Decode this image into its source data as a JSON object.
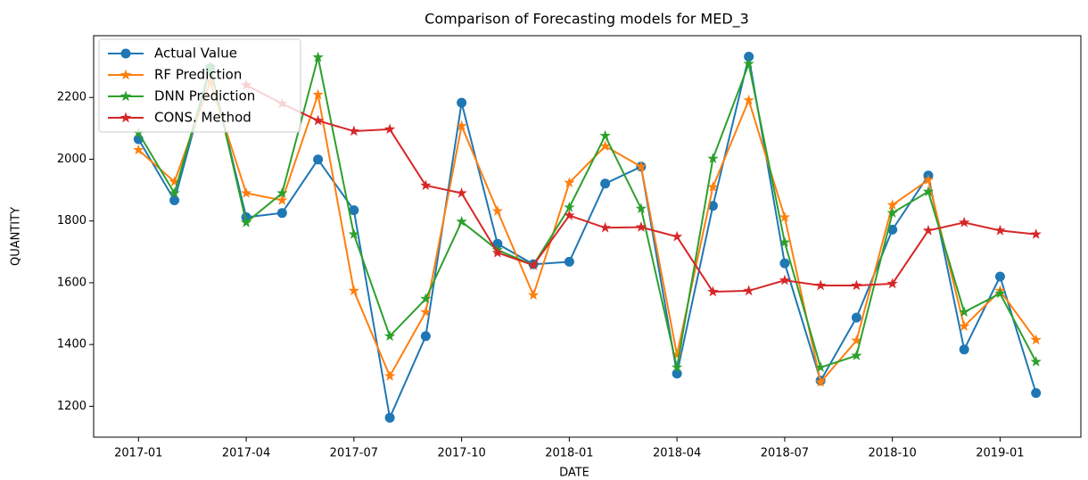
{
  "chart_data": {
    "type": "line",
    "title": "Comparison of Forecasting models for MED_3",
    "xlabel": "DATE",
    "ylabel": "QUANTITY",
    "x": [
      "2017-01",
      "2017-02",
      "2017-03",
      "2017-04",
      "2017-05",
      "2017-06",
      "2017-07",
      "2017-08",
      "2017-09",
      "2017-10",
      "2017-11",
      "2017-12",
      "2018-01",
      "2018-02",
      "2018-03",
      "2018-04",
      "2018-05",
      "2018-06",
      "2018-07",
      "2018-08",
      "2018-09",
      "2018-10",
      "2018-11",
      "2018-12",
      "2019-01",
      "2019-02"
    ],
    "series": [
      {
        "name": "Actual Value",
        "color": "#1f77b4",
        "marker": "circle",
        "values": [
          2065,
          1867,
          2295,
          1812,
          1826,
          1999,
          1835,
          1163,
          1427,
          2183,
          1726,
          1660,
          1668,
          1921,
          1976,
          1306,
          1849,
          2332,
          1663,
          1283,
          1487,
          1772,
          1947,
          1384,
          1620,
          1243
        ]
      },
      {
        "name": "RF Prediction",
        "color": "#ff7f0e",
        "marker": "star",
        "values": [
          2030,
          1927,
          2250,
          1890,
          1867,
          2209,
          1574,
          1298,
          1505,
          2108,
          1832,
          1560,
          1924,
          2042,
          1976,
          1367,
          1910,
          2191,
          1812,
          1278,
          1413,
          1852,
          1933,
          1459,
          1574,
          1415
        ]
      },
      {
        "name": "DNN Prediction",
        "color": "#2ca02c",
        "marker": "star",
        "values": [
          2085,
          1890,
          2300,
          1795,
          1890,
          2330,
          1757,
          1427,
          1548,
          1798,
          1706,
          1657,
          1844,
          2076,
          1840,
          1326,
          2002,
          2309,
          1731,
          1326,
          1364,
          1826,
          1895,
          1505,
          1565,
          1344
        ]
      },
      {
        "name": "CONS. Method",
        "color": "#d62728",
        "marker": "star",
        "values": [
          null,
          null,
          null,
          2240,
          2180,
          2125,
          2091,
          2097,
          1915,
          1890,
          1697,
          1657,
          1818,
          1778,
          1780,
          1749,
          1571,
          1574,
          1608,
          1591,
          1591,
          1597,
          1769,
          1795,
          1769,
          1757
        ]
      }
    ],
    "ylim": [
      1100,
      2400
    ],
    "yticks": [
      1200,
      1400,
      1600,
      1800,
      2000,
      2200
    ],
    "xticks": [
      "2017-01",
      "2017-04",
      "2017-07",
      "2017-10",
      "2018-01",
      "2018-04",
      "2018-07",
      "2018-10",
      "2019-01"
    ],
    "legend": "upper left",
    "grid": false
  }
}
